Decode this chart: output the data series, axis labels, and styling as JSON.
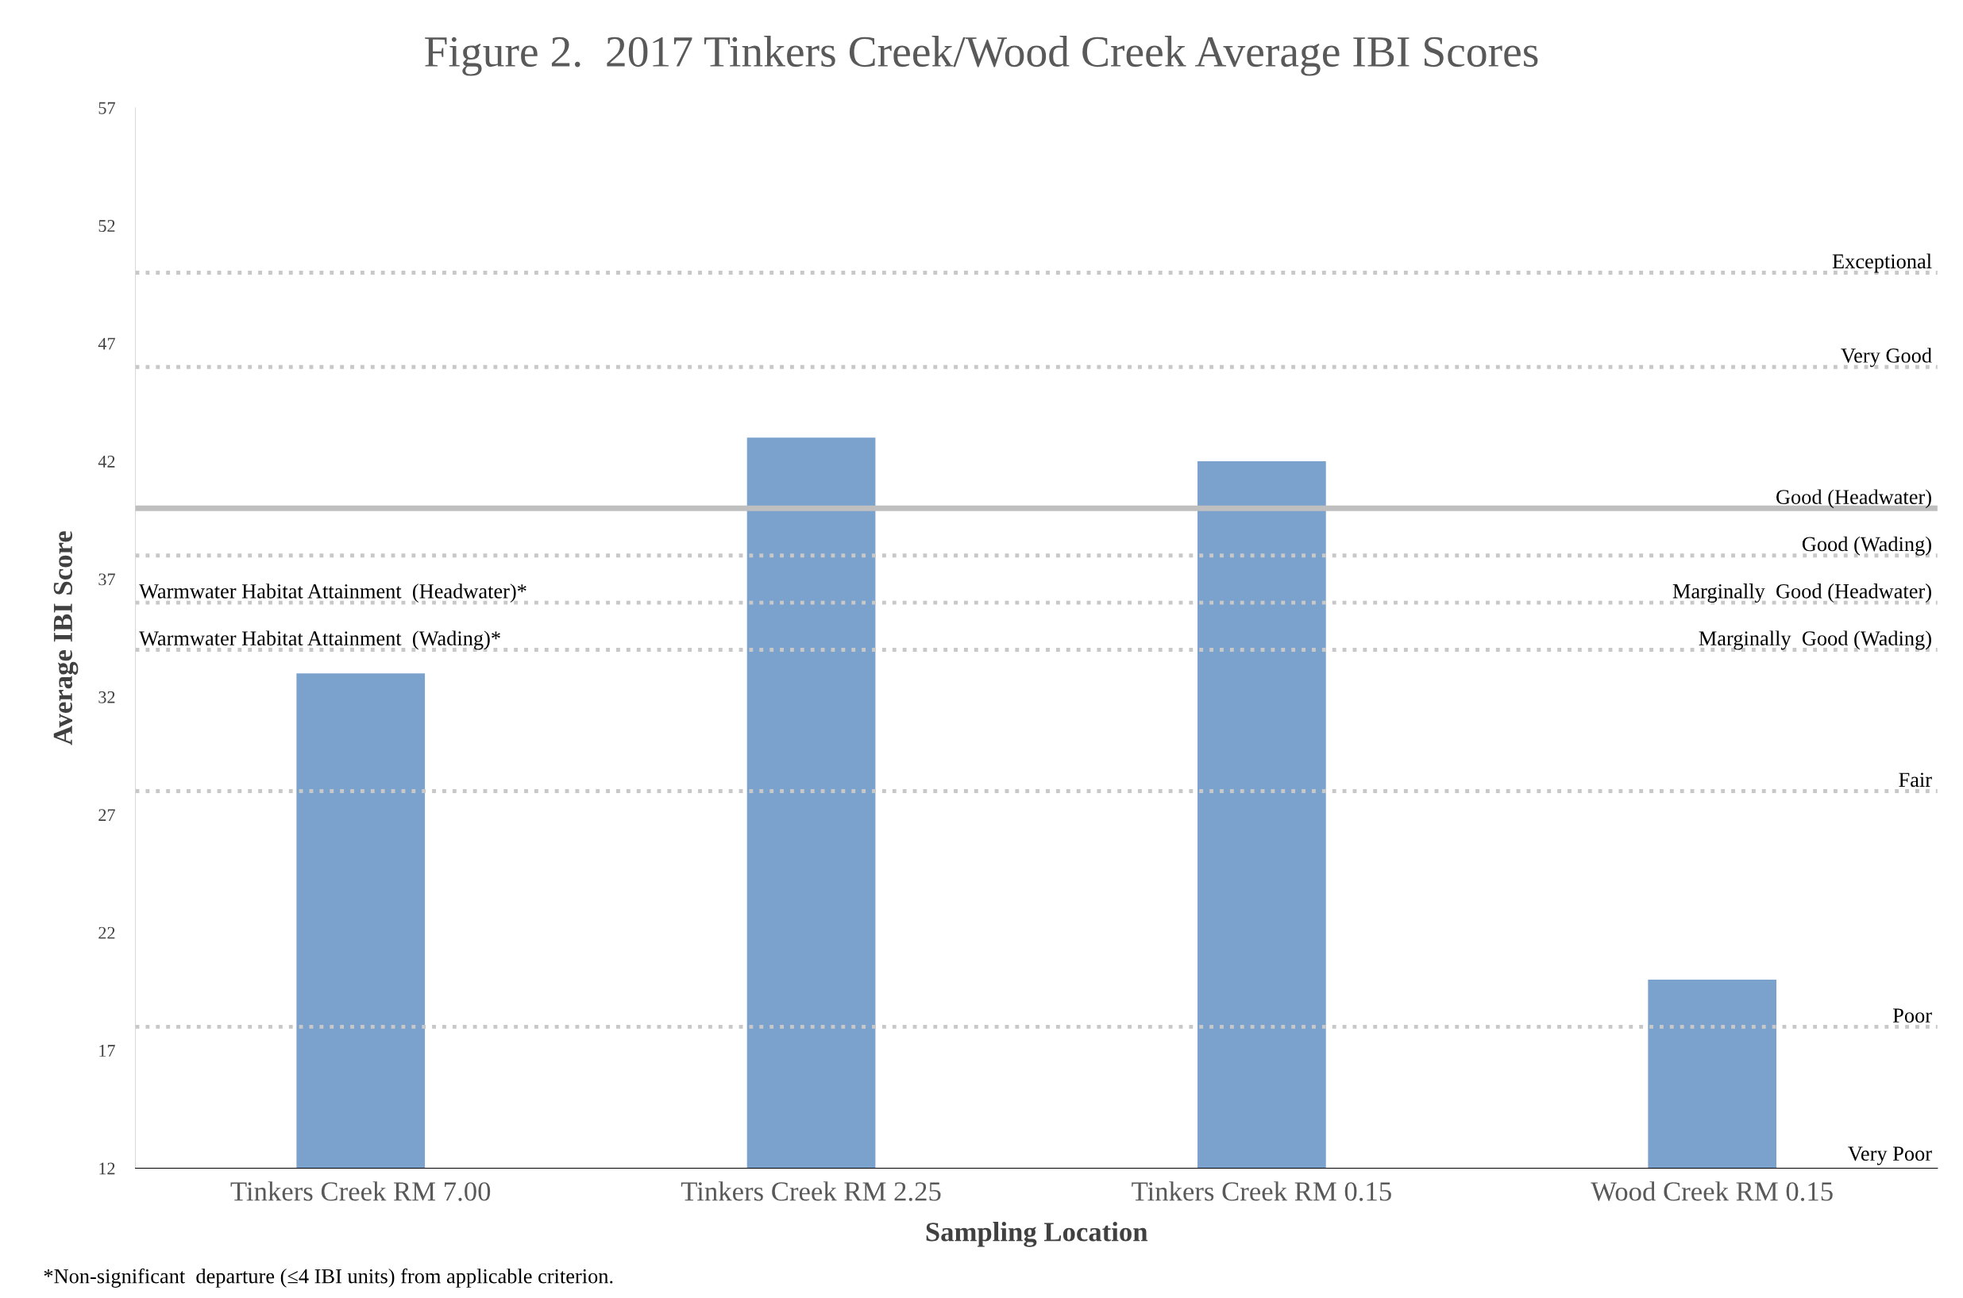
{
  "chart_data": {
    "type": "bar",
    "title": "Figure 2.  2017 Tinkers Creek/Wood Creek Average IBI Scores",
    "xlabel": "Sampling Location",
    "ylabel": "Average IBI Score",
    "categories": [
      "Tinkers Creek RM 7.00",
      "Tinkers Creek RM 2.25",
      "Tinkers Creek RM 0.15",
      "Wood Creek RM 0.15"
    ],
    "values": [
      33,
      43,
      42,
      20
    ],
    "color": "#7ba1cd",
    "ylim": [
      12,
      57
    ],
    "yticks": [
      12,
      17,
      22,
      27,
      32,
      37,
      42,
      47,
      52,
      57
    ],
    "grid": false,
    "legend": false,
    "ref_lines": [
      {
        "axis": "y",
        "value": 50,
        "label": "Exceptional",
        "color": "#c8c8c8",
        "line_style": "dotted"
      },
      {
        "axis": "y",
        "value": 46,
        "label": "Very Good",
        "color": "#c8c8c8",
        "line_style": "dotted"
      },
      {
        "axis": "y",
        "value": 40,
        "label": "Good (Headwater)",
        "color": "#bfbfbf",
        "line_style": "solid"
      },
      {
        "axis": "y",
        "value": 38,
        "label": "Good (Wading)",
        "color": "#c8c8c8",
        "line_style": "dotted"
      },
      {
        "axis": "y",
        "value": 36,
        "label": "Marginally  Good (Headwater)",
        "color": "#c8c8c8",
        "line_style": "dotted"
      },
      {
        "axis": "y",
        "value": 34,
        "label": "Marginally  Good (Wading)",
        "color": "#c8c8c8",
        "line_style": "dotted"
      },
      {
        "axis": "y",
        "value": 28,
        "label": "Fair",
        "color": "#c8c8c8",
        "line_style": "dotted"
      },
      {
        "axis": "y",
        "value": 18,
        "label": "Poor",
        "color": "#c8c8c8",
        "line_style": "dotted"
      }
    ],
    "annotations": [
      "Very Poor",
      {
        "text": "Warmwater Habitat Attainment  (Headwater)*",
        "y": 36
      },
      {
        "text": "Warmwater Habitat Attainment  (Wading)*",
        "y": 34
      },
      "*Non-significant  departure (≤4 IBI units) from applicable criterion."
    ]
  }
}
